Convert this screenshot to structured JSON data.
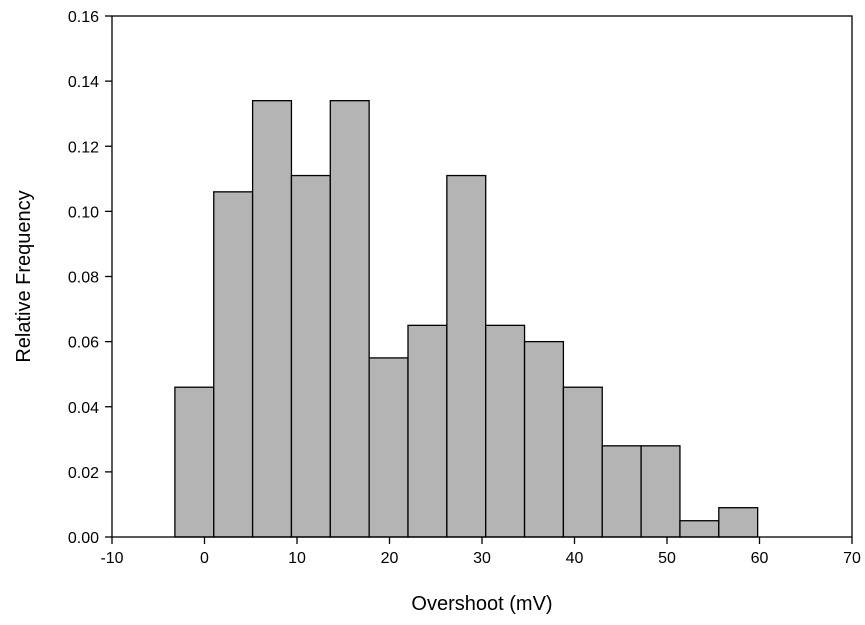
{
  "chart_data": {
    "type": "bar",
    "subtype": "histogram",
    "title": "",
    "xlabel": "Overshoot (mV)",
    "ylabel": "Relative Frequency",
    "xlim": [
      -10,
      70
    ],
    "ylim": [
      0,
      0.16
    ],
    "x_ticks": [
      -10,
      0,
      10,
      20,
      30,
      40,
      50,
      60,
      70
    ],
    "x_tick_labels": [
      "-10",
      "0",
      "10",
      "20",
      "30",
      "40",
      "50",
      "60",
      "70"
    ],
    "y_ticks": [
      0,
      0.02,
      0.04,
      0.06,
      0.08,
      0.1,
      0.12,
      0.14,
      0.16
    ],
    "y_tick_labels": [
      "0.00",
      "0.02",
      "0.04",
      "0.06",
      "0.08",
      "0.10",
      "0.12",
      "0.14",
      "0.16"
    ],
    "grid": false,
    "bin_edges": [
      -3.2,
      1.0,
      5.2,
      9.4,
      13.6,
      17.8,
      22.0,
      26.2,
      30.4,
      34.6,
      38.8,
      43.0,
      47.2,
      51.4,
      55.6,
      59.8
    ],
    "values": [
      0.046,
      0.106,
      0.134,
      0.111,
      0.134,
      0.055,
      0.065,
      0.111,
      0.065,
      0.06,
      0.046,
      0.028,
      0.028,
      0.005,
      0.009
    ],
    "bar_fill": "#b4b4b4",
    "bar_stroke": "#000000"
  }
}
